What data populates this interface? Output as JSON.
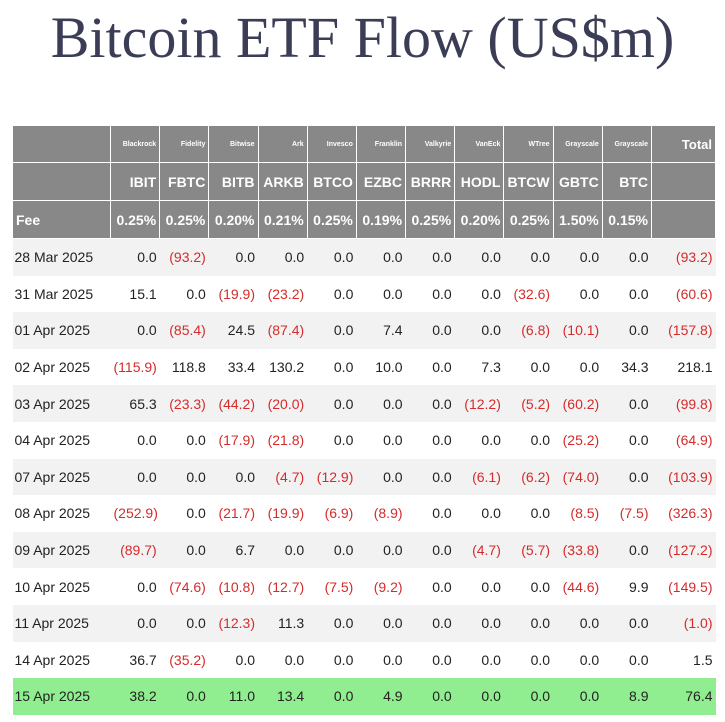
{
  "title": "Bitcoin ETF Flow (US$m)",
  "header": {
    "fee_label": "Fee",
    "total_label": "Total",
    "funds": [
      {
        "issuer": "Blackrock",
        "ticker": "IBIT",
        "fee": "0.25%"
      },
      {
        "issuer": "Fidelity",
        "ticker": "FBTC",
        "fee": "0.25%"
      },
      {
        "issuer": "Bitwise",
        "ticker": "BITB",
        "fee": "0.20%"
      },
      {
        "issuer": "Ark",
        "ticker": "ARKB",
        "fee": "0.21%"
      },
      {
        "issuer": "Invesco",
        "ticker": "BTCO",
        "fee": "0.25%"
      },
      {
        "issuer": "Franklin",
        "ticker": "EZBC",
        "fee": "0.19%"
      },
      {
        "issuer": "Valkyrie",
        "ticker": "BRRR",
        "fee": "0.25%"
      },
      {
        "issuer": "VanEck",
        "ticker": "HODL",
        "fee": "0.20%"
      },
      {
        "issuer": "WTree",
        "ticker": "BTCW",
        "fee": "0.25%"
      },
      {
        "issuer": "Grayscale",
        "ticker": "GBTC",
        "fee": "1.50%"
      },
      {
        "issuer": "Grayscale",
        "ticker": "BTC",
        "fee": "0.15%"
      }
    ]
  },
  "colors": {
    "header_bg": "#888888",
    "negative": "#d52b2b",
    "highlight_row": "#90ee90",
    "title": "#3a3d55"
  },
  "chart_data": {
    "type": "table",
    "title": "Bitcoin ETF Flow (US$m)",
    "columns": [
      "IBIT",
      "FBTC",
      "BITB",
      "ARKB",
      "BTCO",
      "EZBC",
      "BRRR",
      "HODL",
      "BTCW",
      "GBTC",
      "BTC",
      "Total"
    ],
    "rows": [
      {
        "date": "28 Mar 2025",
        "values": [
          "0.0",
          "(93.2)",
          "0.0",
          "0.0",
          "0.0",
          "0.0",
          "0.0",
          "0.0",
          "0.0",
          "0.0",
          "0.0",
          "(93.2)"
        ]
      },
      {
        "date": "31 Mar 2025",
        "values": [
          "15.1",
          "0.0",
          "(19.9)",
          "(23.2)",
          "0.0",
          "0.0",
          "0.0",
          "0.0",
          "(32.6)",
          "0.0",
          "0.0",
          "(60.6)"
        ]
      },
      {
        "date": "01 Apr 2025",
        "values": [
          "0.0",
          "(85.4)",
          "24.5",
          "(87.4)",
          "0.0",
          "7.4",
          "0.0",
          "0.0",
          "(6.8)",
          "(10.1)",
          "0.0",
          "(157.8)"
        ]
      },
      {
        "date": "02 Apr 2025",
        "values": [
          "(115.9)",
          "118.8",
          "33.4",
          "130.2",
          "0.0",
          "10.0",
          "0.0",
          "7.3",
          "0.0",
          "0.0",
          "34.3",
          "218.1"
        ]
      },
      {
        "date": "03 Apr 2025",
        "values": [
          "65.3",
          "(23.3)",
          "(44.2)",
          "(20.0)",
          "0.0",
          "0.0",
          "0.0",
          "(12.2)",
          "(5.2)",
          "(60.2)",
          "0.0",
          "(99.8)"
        ]
      },
      {
        "date": "04 Apr 2025",
        "values": [
          "0.0",
          "0.0",
          "(17.9)",
          "(21.8)",
          "0.0",
          "0.0",
          "0.0",
          "0.0",
          "0.0",
          "(25.2)",
          "0.0",
          "(64.9)"
        ]
      },
      {
        "date": "07 Apr 2025",
        "values": [
          "0.0",
          "0.0",
          "0.0",
          "(4.7)",
          "(12.9)",
          "0.0",
          "0.0",
          "(6.1)",
          "(6.2)",
          "(74.0)",
          "0.0",
          "(103.9)"
        ]
      },
      {
        "date": "08 Apr 2025",
        "values": [
          "(252.9)",
          "0.0",
          "(21.7)",
          "(19.9)",
          "(6.9)",
          "(8.9)",
          "0.0",
          "0.0",
          "0.0",
          "(8.5)",
          "(7.5)",
          "(326.3)"
        ]
      },
      {
        "date": "09 Apr 2025",
        "values": [
          "(89.7)",
          "0.0",
          "6.7",
          "0.0",
          "0.0",
          "0.0",
          "0.0",
          "(4.7)",
          "(5.7)",
          "(33.8)",
          "0.0",
          "(127.2)"
        ]
      },
      {
        "date": "10 Apr 2025",
        "values": [
          "0.0",
          "(74.6)",
          "(10.8)",
          "(12.7)",
          "(7.5)",
          "(9.2)",
          "0.0",
          "0.0",
          "0.0",
          "(44.6)",
          "9.9",
          "(149.5)"
        ]
      },
      {
        "date": "11 Apr 2025",
        "values": [
          "0.0",
          "0.0",
          "(12.3)",
          "11.3",
          "0.0",
          "0.0",
          "0.0",
          "0.0",
          "0.0",
          "0.0",
          "0.0",
          "(1.0)"
        ]
      },
      {
        "date": "14 Apr 2025",
        "values": [
          "36.7",
          "(35.2)",
          "0.0",
          "0.0",
          "0.0",
          "0.0",
          "0.0",
          "0.0",
          "0.0",
          "0.0",
          "0.0",
          "1.5"
        ]
      },
      {
        "date": "15 Apr 2025",
        "values": [
          "38.2",
          "0.0",
          "11.0",
          "13.4",
          "0.0",
          "4.9",
          "0.0",
          "0.0",
          "0.0",
          "0.0",
          "8.9",
          "76.4"
        ],
        "highlight": true
      }
    ]
  }
}
